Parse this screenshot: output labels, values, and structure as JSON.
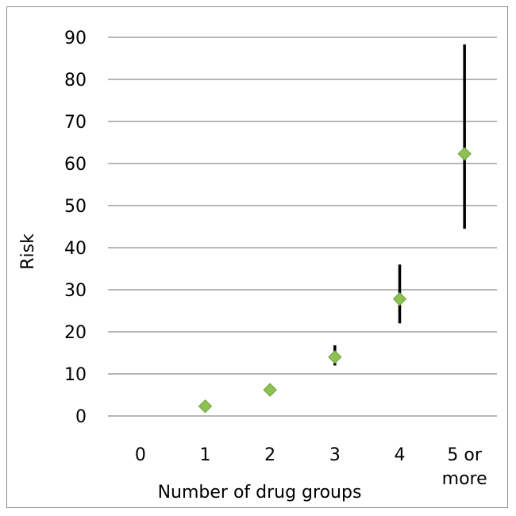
{
  "chart_data": {
    "type": "scatter",
    "xlabel": "Number of drug groups",
    "ylabel": "Risk",
    "ylim": [
      0,
      90
    ],
    "y_ticks": [
      0,
      10,
      20,
      30,
      40,
      50,
      60,
      70,
      80,
      90
    ],
    "categories": [
      {
        "lines": [
          "0"
        ]
      },
      {
        "lines": [
          "1"
        ]
      },
      {
        "lines": [
          "2"
        ]
      },
      {
        "lines": [
          "3"
        ]
      },
      {
        "lines": [
          "4"
        ]
      },
      {
        "lines": [
          "5 or",
          "more"
        ]
      }
    ],
    "grid": true,
    "legend": "none",
    "marker_color": "#8DC153",
    "marker_edge_color": "#6FA23A",
    "errorbar_color": "#000000",
    "points": [
      {
        "category_index": 1,
        "value": 2.3,
        "low": null,
        "high": null
      },
      {
        "category_index": 2,
        "value": 6.2,
        "low": null,
        "high": null
      },
      {
        "category_index": 3,
        "value": 14.0,
        "low": 12.0,
        "high": 16.8
      },
      {
        "category_index": 4,
        "value": 27.8,
        "low": 22.0,
        "high": 36.0
      },
      {
        "category_index": 5,
        "value": 62.3,
        "low": 44.5,
        "high": 88.3
      }
    ]
  }
}
